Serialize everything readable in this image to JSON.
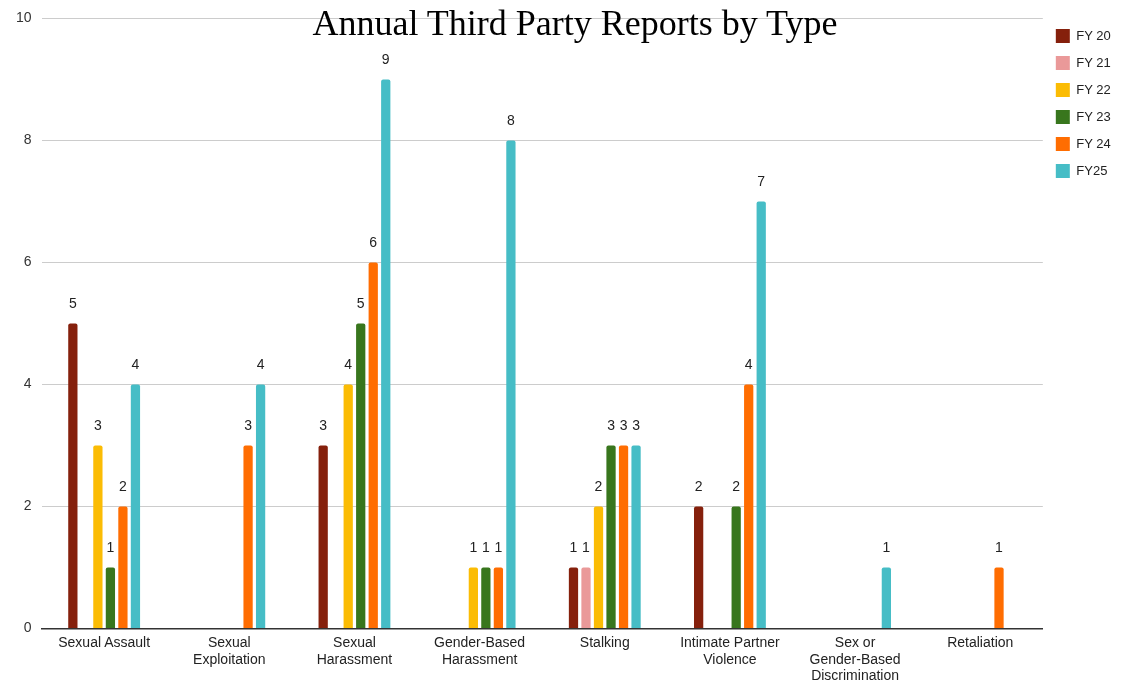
{
  "chart_data": {
    "type": "bar",
    "title": "Annual Third Party Reports by Type",
    "categories": [
      "Sexual Assault",
      "Sexual Exploitation",
      "Sexual Harassment",
      "Gender-Based Harassment",
      "Stalking",
      "Intimate Partner Violence",
      "Sex or Gender-Based Discrimination",
      "Retaliation"
    ],
    "series": [
      {
        "name": "FY 20",
        "color": "#85200c",
        "values": [
          5,
          null,
          3,
          null,
          1,
          2,
          null,
          null
        ]
      },
      {
        "name": "FY 21",
        "color": "#ea9999",
        "values": [
          null,
          null,
          null,
          null,
          1,
          null,
          null,
          null
        ]
      },
      {
        "name": "FY 22",
        "color": "#fbbc04",
        "values": [
          3,
          null,
          4,
          1,
          2,
          null,
          null,
          null
        ]
      },
      {
        "name": "FY 23",
        "color": "#38761d",
        "values": [
          1,
          null,
          5,
          1,
          3,
          2,
          null,
          null
        ]
      },
      {
        "name": "FY 24",
        "color": "#ff6d01",
        "values": [
          2,
          3,
          6,
          1,
          3,
          4,
          null,
          1
        ]
      },
      {
        "name": "FY25",
        "color": "#46bdc6",
        "values": [
          4,
          4,
          9,
          8,
          3,
          7,
          1,
          null
        ]
      }
    ],
    "ylim": [
      0,
      10
    ],
    "yticks": [
      0,
      2,
      4,
      6,
      8,
      10
    ],
    "grid": "y",
    "legend": "top right",
    "data_labels": true
  }
}
